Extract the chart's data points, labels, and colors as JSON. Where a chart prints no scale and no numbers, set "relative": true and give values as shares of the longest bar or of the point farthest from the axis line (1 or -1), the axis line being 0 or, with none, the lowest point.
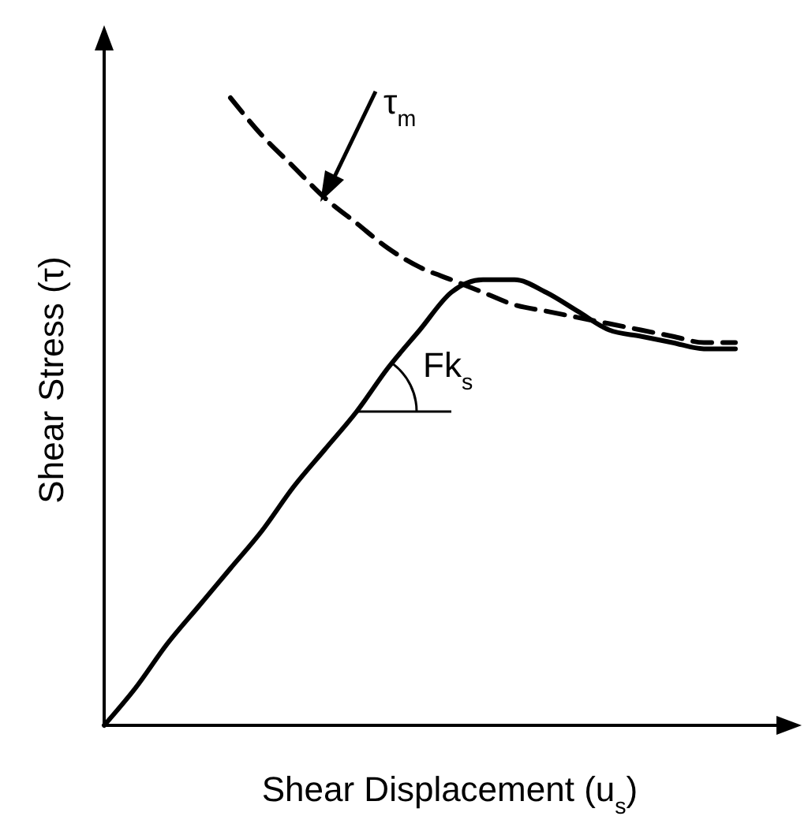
{
  "chart_data": {
    "type": "line",
    "relative": true,
    "xlabel": "Shear Displacement (u$_{s}$)",
    "ylabel": "Shear Stress (τ)",
    "categories": [
      null,
      null,
      null,
      null,
      null,
      null,
      null,
      null,
      null,
      null,
      null,
      null,
      null,
      null,
      null,
      null,
      null,
      null,
      null,
      null,
      null,
      null
    ],
    "series": [
      {
        "color": "#000000",
        "line_style": "solid",
        "values": [
          0,
          0.06,
          0.13,
          0.19,
          0.25,
          0.31,
          0.38,
          0.44,
          0.5,
          0.57,
          0.63,
          0.69,
          0.71,
          0.71,
          0.69,
          0.66,
          0.63,
          0.62,
          0.61,
          0.6,
          0.6,
          null
        ]
      },
      {
        "color": "#000000",
        "line_style": "dashed",
        "values": [
          null,
          null,
          null,
          null,
          1,
          0.94,
          0.89,
          0.84,
          0.8,
          0.76,
          0.73,
          0.71,
          0.69,
          0.67,
          0.66,
          0.65,
          0.64,
          0.63,
          0.62,
          0.61,
          0.61,
          null
        ]
      }
    ],
    "annotations": [
      "τ$_{m}$",
      "Fk$_{s}$"
    ]
  }
}
